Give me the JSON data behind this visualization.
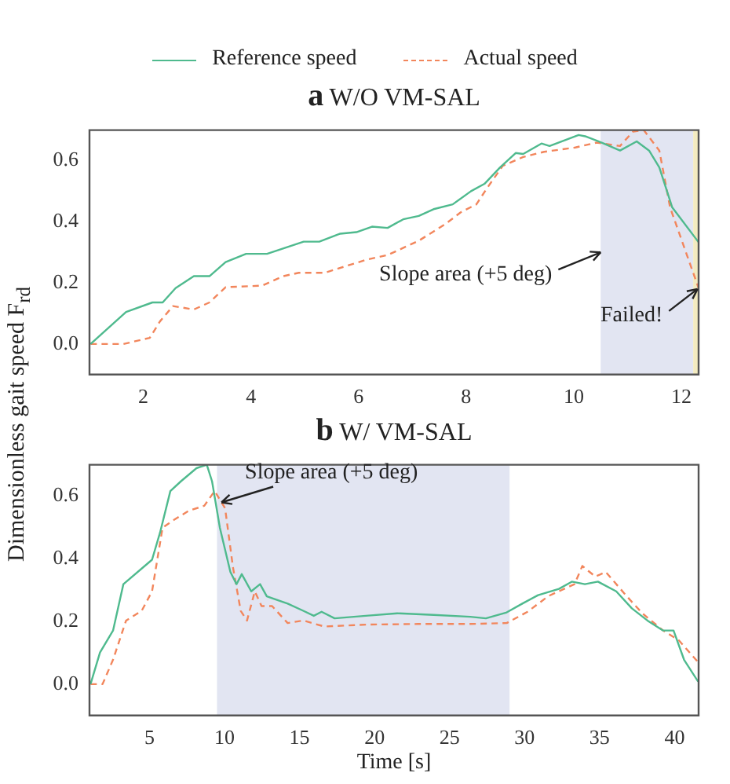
{
  "chart_data": [
    {
      "type": "line",
      "title": "a W/O VM-SAL",
      "ylabel": "Dimensionless gait speed F$_{rd}$",
      "legend": "top",
      "grid": false,
      "marker": "none",
      "xlim": [
        1,
        12.32
      ],
      "xticks": [
        2,
        4,
        6,
        8,
        10,
        12
      ],
      "ylim": [
        -0.1,
        0.7
      ],
      "yticks": [
        {
          "value": 0,
          "label": "0.0"
        },
        {
          "value": 0.2,
          "label": "0.2"
        },
        {
          "value": 0.4,
          "label": "0.4"
        },
        {
          "value": 0.6,
          "label": "0.6"
        }
      ],
      "bands": [
        {
          "axis": "x",
          "from": 10.5,
          "to": 12.22,
          "color": "#e2e5f2"
        },
        {
          "axis": "x",
          "from": 12.22,
          "to": 12.32,
          "color": "#f3ebc0"
        }
      ],
      "annotations": [
        {
          "text": "Slope area (+5 deg)",
          "x": 10.5,
          "y": 0.3
        },
        {
          "text": "Failed!",
          "x": 12.3,
          "y": 0.18
        }
      ],
      "series": [
        {
          "name": "Reference speed",
          "color": "#4fba8e",
          "line_style": "solid",
          "x": [
            1.02,
            1.68,
            2.17,
            2.36,
            2.6,
            2.94,
            3.23,
            3.53,
            3.91,
            4.3,
            4.98,
            5.27,
            5.66,
            5.96,
            6.25,
            6.54,
            6.83,
            7.12,
            7.41,
            7.75,
            8.09,
            8.34,
            8.63,
            8.92,
            9.06,
            9.4,
            9.55,
            10.09,
            10.23,
            10.52,
            10.86,
            11.17,
            11.4,
            11.59,
            11.83,
            12.32
          ],
          "values": [
            0,
            0.105,
            0.136,
            0.136,
            0.183,
            0.222,
            0.222,
            0.268,
            0.295,
            0.295,
            0.335,
            0.335,
            0.361,
            0.366,
            0.384,
            0.38,
            0.408,
            0.419,
            0.442,
            0.457,
            0.5,
            0.524,
            0.578,
            0.625,
            0.622,
            0.656,
            0.648,
            0.684,
            0.679,
            0.659,
            0.633,
            0.663,
            0.633,
            0.578,
            0.447,
            0.333
          ]
        },
        {
          "name": "Actual speed",
          "color": "#f2865c",
          "line_style": "dashed",
          "x": [
            1.02,
            1.63,
            2.12,
            2.31,
            2.55,
            2.94,
            3.23,
            3.53,
            4.21,
            4.6,
            4.89,
            5.37,
            6.15,
            6.54,
            7.12,
            7.61,
            7.9,
            8.19,
            8.38,
            8.68,
            9.06,
            9.45,
            10.03,
            10.42,
            10.86,
            11.1,
            11.3,
            11.59,
            11.79,
            12.32
          ],
          "values": [
            0,
            0,
            0.02,
            0.074,
            0.124,
            0.113,
            0.136,
            0.186,
            0.191,
            0.222,
            0.233,
            0.233,
            0.276,
            0.291,
            0.338,
            0.392,
            0.431,
            0.457,
            0.508,
            0.583,
            0.612,
            0.629,
            0.643,
            0.659,
            0.648,
            0.695,
            0.7,
            0.633,
            0.447,
            0.183
          ]
        }
      ]
    },
    {
      "type": "line",
      "title": "b W/ VM-SAL",
      "xlabel": "Time [s]",
      "grid": false,
      "marker": "none",
      "xlim": [
        1,
        41.6
      ],
      "xticks": [
        5,
        10,
        15,
        20,
        25,
        30,
        35,
        40
      ],
      "ylim": [
        -0.1,
        0.7
      ],
      "yticks": [
        {
          "value": 0,
          "label": "0.0"
        },
        {
          "value": 0.2,
          "label": "0.2"
        },
        {
          "value": 0.4,
          "label": "0.4"
        },
        {
          "value": 0.6,
          "label": "0.6"
        }
      ],
      "bands": [
        {
          "axis": "x",
          "from": 9.5,
          "to": 29,
          "color": "#e2e5f2"
        }
      ],
      "annotations": [
        {
          "text": "Slope area (+5 deg)",
          "x": 9.8,
          "y": 0.58
        }
      ],
      "series": [
        {
          "color": "#4fba8e",
          "line_style": "solid",
          "x": [
            1.07,
            1.7,
            2.57,
            3.26,
            5.17,
            5.7,
            6.39,
            7.09,
            8.13,
            8.82,
            9.17,
            9.69,
            10.39,
            10.8,
            11.15,
            11.78,
            12.37,
            12.82,
            14.21,
            15.25,
            15.95,
            16.47,
            17.34,
            19.42,
            21.51,
            23.94,
            26.38,
            27.42,
            28.81,
            29.85,
            30.9,
            32.29,
            33.15,
            34.02,
            34.89,
            36.11,
            37.15,
            38.19,
            39.24,
            39.93,
            40.63,
            41.57
          ],
          "values": [
            0,
            0.101,
            0.171,
            0.319,
            0.397,
            0.483,
            0.616,
            0.647,
            0.689,
            0.7,
            0.647,
            0.499,
            0.358,
            0.319,
            0.351,
            0.296,
            0.319,
            0.28,
            0.257,
            0.234,
            0.218,
            0.231,
            0.21,
            0.218,
            0.226,
            0.221,
            0.215,
            0.21,
            0.229,
            0.257,
            0.284,
            0.304,
            0.327,
            0.319,
            0.327,
            0.296,
            0.242,
            0.203,
            0.171,
            0.171,
            0.078,
            0.008
          ]
        },
        {
          "color": "#f2865c",
          "line_style": "dashed",
          "x": [
            1.07,
            1.87,
            2.57,
            3.44,
            4.48,
            5.17,
            5.87,
            6.56,
            7.61,
            8.65,
            9.34,
            10.04,
            10.56,
            11.08,
            11.5,
            12.02,
            12.47,
            13.17,
            14.21,
            15.25,
            16.64,
            19.42,
            22.9,
            26.38,
            28.81,
            30.2,
            31.59,
            33.33,
            33.85,
            34.72,
            35.41,
            36.8,
            37.85,
            39.24,
            40.28,
            41.57
          ],
          "values": [
            0,
            0,
            0.078,
            0.203,
            0.234,
            0.296,
            0.499,
            0.522,
            0.553,
            0.569,
            0.616,
            0.561,
            0.374,
            0.234,
            0.203,
            0.296,
            0.249,
            0.249,
            0.195,
            0.203,
            0.184,
            0.19,
            0.192,
            0.192,
            0.195,
            0.231,
            0.281,
            0.319,
            0.377,
            0.343,
            0.358,
            0.281,
            0.226,
            0.171,
            0.14,
            0.07
          ]
        }
      ]
    }
  ]
}
